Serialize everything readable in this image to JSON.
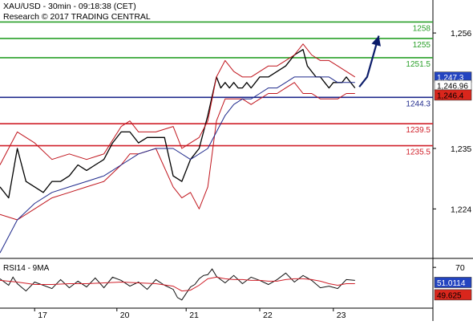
{
  "chart_data": {
    "type": "line",
    "header": {
      "line1": "XAU/USD - 30min - 09:18:38 (CET)",
      "line2": "Research © 2017 TRADING CENTRAL"
    },
    "price_axis": {
      "ticks": [
        1256,
        1235,
        1224
      ],
      "tick_labels": [
        "1,256",
        "1,235",
        "1,224"
      ],
      "range": [
        1215,
        1262
      ]
    },
    "x_axis": {
      "tick_labels": [
        "17",
        "20",
        "21",
        "22",
        "23"
      ],
      "tick_positions": [
        8,
        27,
        43,
        60,
        77
      ],
      "range": [
        0,
        100
      ]
    },
    "levels": [
      {
        "name": "resistance",
        "value": 1258,
        "label": "1258",
        "color": "#2aa02a"
      },
      {
        "name": "resistance",
        "value": 1255,
        "label": "1255",
        "color": "#2aa02a"
      },
      {
        "name": "resistance",
        "value": 1251.5,
        "label": "1251.5",
        "color": "#2aa02a"
      },
      {
        "name": "pivot",
        "value": 1244.3,
        "label": "1244.3",
        "color": "#1f2a8c"
      },
      {
        "name": "support",
        "value": 1239.5,
        "label": "1239.5",
        "color": "#d0202a"
      },
      {
        "name": "support",
        "value": 1235.5,
        "label": "1235.5",
        "color": "#d0202a"
      }
    ],
    "current_prices": [
      {
        "label": "1,247.3",
        "value": 1247.3,
        "bg": "#2344c0",
        "fg": "#ffffff"
      },
      {
        "label": "1,246.96",
        "value": 1246.96,
        "bg": "#ffffff",
        "fg": "#000000"
      },
      {
        "label": "1,246.4",
        "value": 1246.4,
        "bg": "#d9261c",
        "fg": "#000000"
      }
    ],
    "forecast_arrow": {
      "points": [
        [
          83,
          1246.2
        ],
        [
          84.8,
          1248
        ],
        [
          87.5,
          1255.5
        ]
      ],
      "color": "#0b1c6a"
    },
    "series": [
      {
        "role": "price",
        "x": [
          0,
          2,
          4,
          6,
          8,
          10,
          12,
          14,
          16,
          18,
          20,
          22,
          24,
          26,
          28,
          30,
          32,
          34,
          36,
          38,
          40,
          42,
          44,
          46,
          48,
          50,
          51,
          52,
          53,
          54,
          55,
          56,
          57,
          58,
          59,
          60,
          62,
          64,
          66,
          68,
          70,
          71,
          72,
          73,
          74,
          75,
          76,
          77,
          78,
          79,
          80,
          81,
          82
        ],
        "y": [
          1228,
          1226,
          1235,
          1229,
          1228,
          1227,
          1229,
          1229,
          1230,
          1232,
          1231,
          1232,
          1233,
          1236,
          1238,
          1238,
          1236,
          1237,
          1237,
          1237,
          1230,
          1229,
          1233,
          1235,
          1241,
          1248,
          1246,
          1247,
          1246,
          1247,
          1246,
          1246,
          1247,
          1246,
          1247,
          1248,
          1248,
          1249,
          1250,
          1252,
          1253,
          1250,
          1249,
          1248,
          1248,
          1247,
          1246,
          1247,
          1247,
          1247,
          1248,
          1247,
          1246
        ],
        "color": "#000000"
      },
      {
        "role": "bollinger-upper",
        "x": [
          0,
          4,
          8,
          12,
          16,
          20,
          24,
          28,
          30,
          32,
          36,
          40,
          42,
          44,
          46,
          48,
          50,
          52,
          54,
          56,
          58,
          60,
          62,
          64,
          66,
          68,
          70,
          72,
          74,
          76,
          78,
          80,
          82
        ],
        "y": [
          1232,
          1238,
          1236,
          1233,
          1234,
          1233,
          1234,
          1239,
          1240,
          1238,
          1238,
          1239,
          1235,
          1236,
          1237,
          1240,
          1248,
          1251,
          1249,
          1248,
          1248,
          1249,
          1250,
          1250,
          1251,
          1252,
          1254,
          1252,
          1251,
          1251,
          1250,
          1249,
          1248
        ],
        "color": "#c0141c"
      },
      {
        "role": "bollinger-lower",
        "x": [
          0,
          4,
          8,
          12,
          16,
          20,
          24,
          28,
          30,
          32,
          36,
          40,
          42,
          44,
          46,
          48,
          50,
          52,
          54,
          56,
          58,
          60,
          62,
          64,
          66,
          68,
          70,
          72,
          74,
          76,
          78,
          80,
          82
        ],
        "y": [
          1223,
          1222,
          1224,
          1226,
          1227,
          1228,
          1229,
          1232,
          1234,
          1234,
          1235,
          1228,
          1226,
          1227,
          1224,
          1228,
          1240,
          1244,
          1244,
          1244,
          1243,
          1244,
          1245,
          1245,
          1246,
          1247,
          1245,
          1245,
          1244,
          1244,
          1244,
          1245,
          1245
        ],
        "color": "#c0141c"
      },
      {
        "role": "moving-average",
        "x": [
          0,
          4,
          8,
          12,
          16,
          20,
          24,
          28,
          32,
          36,
          40,
          44,
          48,
          50,
          52,
          54,
          56,
          58,
          60,
          62,
          64,
          66,
          68,
          70,
          72,
          74,
          76,
          78,
          80,
          82
        ],
        "y": [
          1216,
          1222,
          1225,
          1227,
          1228,
          1229,
          1230,
          1232,
          1234,
          1235,
          1235,
          1233,
          1235,
          1238,
          1241,
          1243,
          1244,
          1244,
          1245,
          1246,
          1246,
          1247,
          1248,
          1248,
          1248,
          1248,
          1248,
          1247,
          1247,
          1247
        ],
        "color": "#1f2a8c"
      }
    ],
    "rsi": {
      "label": "RSI14 - 9MA",
      "range": [
        20,
        80
      ],
      "tick": 70,
      "tick_label": "70",
      "last": [
        {
          "label": "51.0114",
          "value": 51.0114,
          "bg": "#2344c0",
          "fg": "#ffffff"
        },
        {
          "label": "49.625",
          "value": 49.625,
          "bg": "#d9261c",
          "fg": "#000000"
        }
      ],
      "series": [
        {
          "role": "rsi",
          "x": [
            0,
            2,
            3,
            4,
            6,
            8,
            10,
            12,
            14,
            16,
            18,
            20,
            22,
            24,
            26,
            28,
            30,
            32,
            34,
            36,
            38,
            40,
            41,
            42,
            43,
            44,
            45,
            46,
            47,
            48,
            49,
            50,
            52,
            54,
            56,
            58,
            60,
            62,
            64,
            66,
            68,
            70,
            72,
            74,
            76,
            78,
            80,
            82
          ],
          "y": [
            56,
            48,
            58,
            50,
            41,
            52,
            48,
            44,
            55,
            45,
            53,
            46,
            57,
            45,
            58,
            54,
            47,
            52,
            43,
            55,
            48,
            43,
            33,
            30,
            38,
            46,
            49,
            56,
            60,
            61,
            68,
            59,
            51,
            60,
            50,
            58,
            54,
            49,
            55,
            63,
            52,
            60,
            54,
            45,
            47,
            44,
            55,
            54
          ],
          "color": "#111111"
        },
        {
          "role": "rsi-ma",
          "x": [
            0,
            4,
            8,
            12,
            16,
            20,
            24,
            28,
            32,
            36,
            40,
            42,
            44,
            46,
            48,
            50,
            52,
            54,
            56,
            58,
            60,
            62,
            64,
            66,
            68,
            70,
            72,
            74,
            76,
            78,
            80,
            82
          ],
          "y": [
            54,
            52,
            49,
            49,
            50,
            50,
            51,
            52,
            51,
            50,
            47,
            41,
            42,
            48,
            56,
            58,
            56,
            55,
            55,
            54,
            54,
            53,
            53,
            55,
            56,
            56,
            55,
            53,
            50,
            48,
            50,
            50
          ],
          "color": "#d0202a"
        }
      ]
    }
  }
}
